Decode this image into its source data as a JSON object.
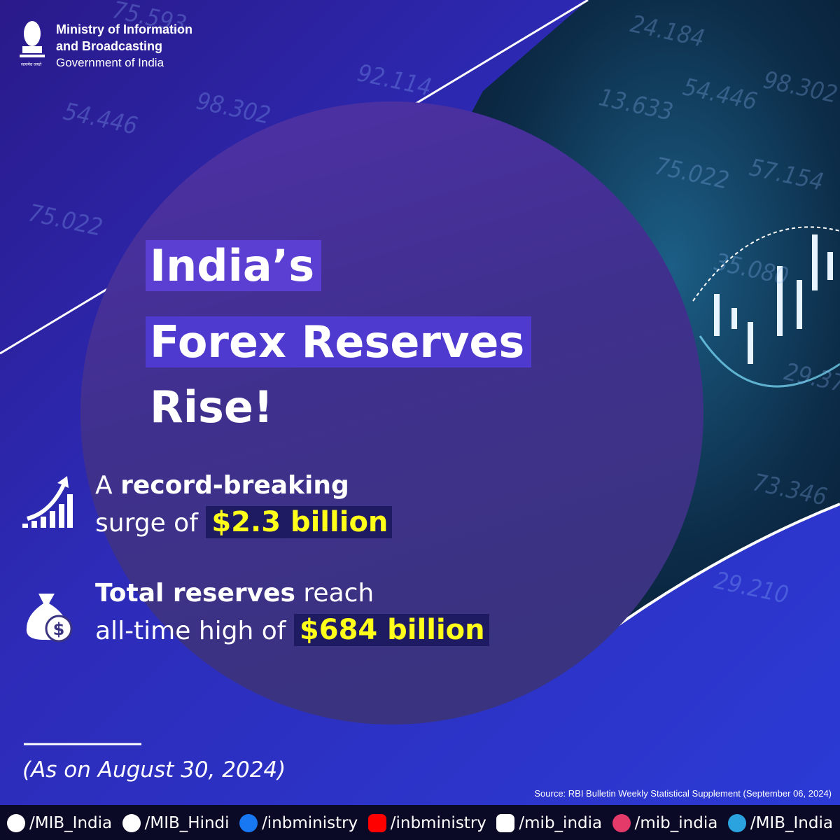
{
  "header": {
    "emblem_motto": "सत्यमेव जयते",
    "line1": "Ministry of Information",
    "line2": "and Broadcasting",
    "line3": "Government of India"
  },
  "background_numbers": [
    "75.593",
    "24.184",
    "54.446",
    "98.302",
    "13.633",
    "54.446",
    "98.302",
    "75.022",
    "57.154",
    "75.022",
    "35.080",
    "29.37",
    "73.346",
    "29.210",
    "92.114"
  ],
  "title": {
    "line1": "India’s",
    "line2": "Forex Reserves",
    "line3": "Rise!"
  },
  "points": [
    {
      "pre": "A",
      "bold": "record-breaking",
      "line2": "surge of",
      "highlight": "$2.3 billion"
    },
    {
      "bold": "Total reserves",
      "post": "reach",
      "line2": "all-time high of",
      "highlight": "$684 billion"
    }
  ],
  "date": "(As on August 30, 2024)",
  "source": "Source: RBI Bulletin Weekly Statistical Supplement (September 06, 2024)",
  "socials": [
    "/MIB_India",
    "/MIB_Hindi",
    "/inbministry",
    "/inbministry",
    "/mib_india",
    "/mib_india",
    "/MIB_India"
  ]
}
